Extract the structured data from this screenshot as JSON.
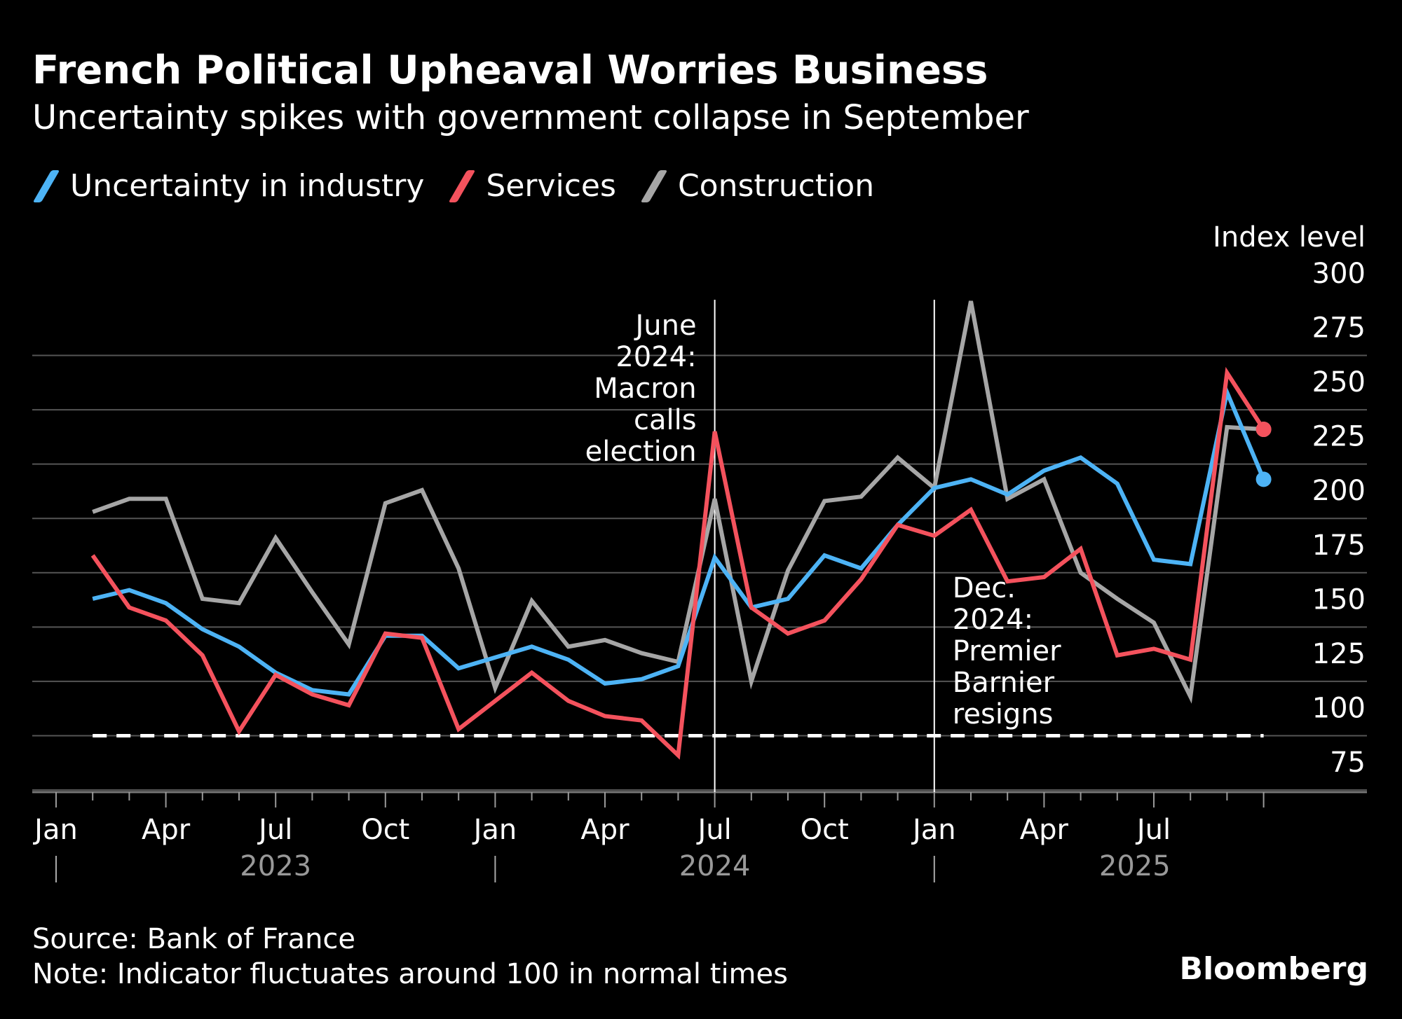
{
  "title": "French Political Upheaval Worries Business",
  "subtitle": "Uncertainty spikes with government collapse in September",
  "legend": [
    {
      "label": "Uncertainty in industry",
      "color": "#4db3f5"
    },
    {
      "label": "Services",
      "color": "#f4525d"
    },
    {
      "label": "Construction",
      "color": "#a6a6a6"
    }
  ],
  "source": "Source: Bank of France",
  "note": "Note: Indicator fluctuates around 100 in normal times",
  "brand": "Bloomberg",
  "chart_data": {
    "type": "line",
    "ylabel": "Index level",
    "ylim": [
      65,
      300
    ],
    "yticks": [
      75,
      100,
      125,
      150,
      175,
      200,
      225,
      250,
      275,
      300
    ],
    "x": [
      "2023-01",
      "2023-02",
      "2023-03",
      "2023-04",
      "2023-05",
      "2023-06",
      "2023-07",
      "2023-08",
      "2023-09",
      "2023-10",
      "2023-11",
      "2023-12",
      "2024-01",
      "2024-02",
      "2024-03",
      "2024-04",
      "2024-05",
      "2024-06",
      "2024-07",
      "2024-08",
      "2024-09",
      "2024-10",
      "2024-11",
      "2024-12",
      "2025-01",
      "2025-02",
      "2025-03",
      "2025-04",
      "2025-05",
      "2025-06",
      "2025-07",
      "2025-08",
      "2025-09",
      "2025-10"
    ],
    "x_tick_labels": [
      {
        "label": "Jan",
        "x": "2023-01"
      },
      {
        "label": "Apr",
        "x": "2023-04"
      },
      {
        "label": "Jul",
        "x": "2023-07"
      },
      {
        "label": "Oct",
        "x": "2023-10"
      },
      {
        "label": "Jan",
        "x": "2024-01"
      },
      {
        "label": "Apr",
        "x": "2024-04"
      },
      {
        "label": "Jul",
        "x": "2024-07"
      },
      {
        "label": "Oct",
        "x": "2024-10"
      },
      {
        "label": "Jan",
        "x": "2025-01"
      },
      {
        "label": "Apr",
        "x": "2025-04"
      },
      {
        "label": "Jul",
        "x": "2025-07"
      }
    ],
    "year_labels": [
      {
        "label": "2023",
        "x": "2023-07"
      },
      {
        "label": "2024",
        "x": "2024-07"
      },
      {
        "label": "2025",
        "x": "2025-06"
      }
    ],
    "reference_line": {
      "y": 100
    },
    "series": [
      {
        "name": "Uncertainty in industry",
        "color": "#4db3f5",
        "values": [
          null,
          163,
          167,
          161,
          149,
          141,
          129,
          121,
          119,
          146,
          146,
          131,
          136,
          141,
          135,
          124,
          126,
          132,
          182,
          159,
          163,
          183,
          177,
          197,
          214,
          218,
          211,
          222,
          228,
          216,
          181,
          179,
          258,
          218
        ]
      },
      {
        "name": "Services",
        "color": "#f4525d",
        "values": [
          null,
          183,
          159,
          153,
          137,
          102,
          128,
          119,
          114,
          147,
          145,
          103,
          116,
          129,
          116,
          109,
          107,
          91,
          240,
          159,
          147,
          153,
          172,
          197,
          192,
          204,
          171,
          173,
          186,
          137,
          140,
          135,
          267,
          241
        ]
      },
      {
        "name": "Construction",
        "color": "#a6a6a6",
        "values": [
          null,
          203,
          209,
          209,
          163,
          161,
          191,
          166,
          142,
          207,
          213,
          177,
          122,
          162,
          141,
          144,
          138,
          134,
          209,
          125,
          176,
          208,
          210,
          228,
          214,
          300,
          209,
          218,
          175,
          163,
          152,
          118,
          242,
          241
        ]
      }
    ],
    "annotations": [
      {
        "x": "2024-07",
        "lines": [
          "June",
          "2024:",
          "Macron",
          "calls",
          "election"
        ],
        "align": "left"
      },
      {
        "x": "2025-01",
        "lines": [
          "Dec.",
          "2024:",
          "Premier",
          "Barnier",
          "resigns"
        ],
        "align": "right"
      }
    ],
    "grid": true,
    "legend_position": "top-left"
  }
}
